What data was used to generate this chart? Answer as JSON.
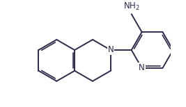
{
  "bond_color": "#2c2c4a",
  "lw": 1.4,
  "dlw": 1.2,
  "bg": "#ffffff",
  "font_size": 8.5,
  "fig_w": 2.67,
  "fig_h": 1.54,
  "xlim": [
    -2.0,
    5.5
  ],
  "ylim": [
    -2.2,
    2.4
  ]
}
